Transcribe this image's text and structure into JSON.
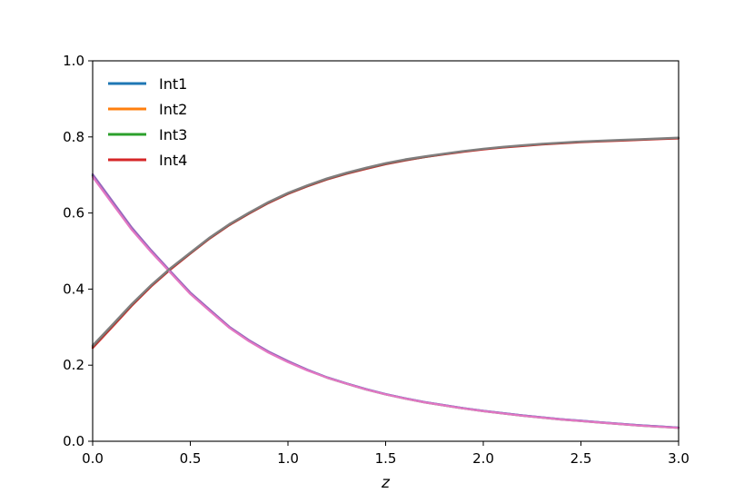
{
  "chart_data": {
    "type": "line",
    "title": "",
    "xlabel": "z",
    "ylabel": "",
    "xlim": [
      0,
      3
    ],
    "ylim": [
      0,
      1
    ],
    "xticks": [
      "0.0",
      "0.5",
      "1.0",
      "1.5",
      "2.0",
      "2.5",
      "3.0"
    ],
    "yticks": [
      "0.0",
      "0.2",
      "0.4",
      "0.6",
      "0.8",
      "1.0"
    ],
    "grid": false,
    "legend_position": "top-left",
    "x": [
      0,
      0.1,
      0.2,
      0.3,
      0.4,
      0.5,
      0.6,
      0.7,
      0.8,
      0.9,
      1.0,
      1.1,
      1.2,
      1.3,
      1.4,
      1.5,
      1.6,
      1.7,
      1.8,
      1.9,
      2.0,
      2.1,
      2.2,
      2.3,
      2.4,
      2.5,
      2.6,
      2.7,
      2.8,
      2.9,
      3.0
    ],
    "series": [
      {
        "name": "Int1",
        "color": "#1f77b4",
        "legend": true,
        "values": [
          0.7,
          0.63,
          0.56,
          0.5,
          0.445,
          0.39,
          0.345,
          0.3,
          0.265,
          0.235,
          0.21,
          0.188,
          0.168,
          0.152,
          0.137,
          0.124,
          0.113,
          0.103,
          0.095,
          0.087,
          0.08,
          0.074,
          0.068,
          0.063,
          0.058,
          0.054,
          0.05,
          0.046,
          0.042,
          0.039,
          0.036
        ]
      },
      {
        "name": "Int2",
        "color": "#ff7f0e",
        "legend": true,
        "values": [
          0.25,
          0.305,
          0.36,
          0.41,
          0.455,
          0.495,
          0.535,
          0.57,
          0.6,
          0.628,
          0.652,
          0.672,
          0.69,
          0.705,
          0.718,
          0.73,
          0.74,
          0.748,
          0.755,
          0.762,
          0.768,
          0.773,
          0.777,
          0.781,
          0.784,
          0.787,
          0.789,
          0.791,
          0.793,
          0.795,
          0.797
        ]
      },
      {
        "name": "Int3",
        "color": "#2ca02c",
        "legend": true,
        "values": [
          0.698,
          0.628,
          0.558,
          0.498,
          0.443,
          0.388,
          0.343,
          0.299,
          0.264,
          0.234,
          0.209,
          0.187,
          0.167,
          0.151,
          0.136,
          0.123,
          0.112,
          0.102,
          0.094,
          0.086,
          0.079,
          0.073,
          0.067,
          0.062,
          0.057,
          0.053,
          0.049,
          0.045,
          0.041,
          0.038,
          0.035
        ]
      },
      {
        "name": "Int4",
        "color": "#d62728",
        "legend": true,
        "values": [
          0.245,
          0.3,
          0.356,
          0.407,
          0.452,
          0.493,
          0.533,
          0.568,
          0.598,
          0.626,
          0.65,
          0.67,
          0.688,
          0.703,
          0.716,
          0.728,
          0.738,
          0.747,
          0.754,
          0.761,
          0.767,
          0.772,
          0.776,
          0.78,
          0.783,
          0.786,
          0.788,
          0.79,
          0.792,
          0.794,
          0.796
        ]
      },
      {
        "name": "",
        "color": "#9467bd",
        "legend": false,
        "values": [
          0.702,
          0.632,
          0.562,
          0.502,
          0.446,
          0.391,
          0.346,
          0.301,
          0.266,
          0.236,
          0.211,
          0.188,
          0.168,
          0.152,
          0.137,
          0.124,
          0.113,
          0.103,
          0.095,
          0.087,
          0.08,
          0.074,
          0.068,
          0.063,
          0.058,
          0.054,
          0.05,
          0.046,
          0.042,
          0.039,
          0.036
        ]
      },
      {
        "name": "",
        "color": "#8c564b",
        "legend": false,
        "values": [
          0.248,
          0.303,
          0.358,
          0.409,
          0.454,
          0.494,
          0.534,
          0.569,
          0.599,
          0.627,
          0.651,
          0.671,
          0.689,
          0.704,
          0.717,
          0.729,
          0.739,
          0.747,
          0.755,
          0.762,
          0.768,
          0.773,
          0.777,
          0.781,
          0.784,
          0.787,
          0.789,
          0.791,
          0.793,
          0.795,
          0.797
        ]
      },
      {
        "name": "",
        "color": "#e377c2",
        "legend": false,
        "values": [
          0.695,
          0.625,
          0.556,
          0.497,
          0.442,
          0.387,
          0.342,
          0.298,
          0.263,
          0.233,
          0.208,
          0.186,
          0.167,
          0.151,
          0.136,
          0.123,
          0.112,
          0.102,
          0.094,
          0.086,
          0.079,
          0.073,
          0.067,
          0.062,
          0.057,
          0.053,
          0.049,
          0.045,
          0.041,
          0.038,
          0.035
        ]
      },
      {
        "name": "",
        "color": "#7f7f7f",
        "legend": false,
        "values": [
          0.252,
          0.306,
          0.361,
          0.411,
          0.456,
          0.496,
          0.536,
          0.571,
          0.601,
          0.629,
          0.653,
          0.673,
          0.691,
          0.706,
          0.719,
          0.731,
          0.741,
          0.749,
          0.756,
          0.763,
          0.769,
          0.774,
          0.778,
          0.782,
          0.785,
          0.788,
          0.79,
          0.792,
          0.794,
          0.796,
          0.798
        ]
      }
    ]
  }
}
